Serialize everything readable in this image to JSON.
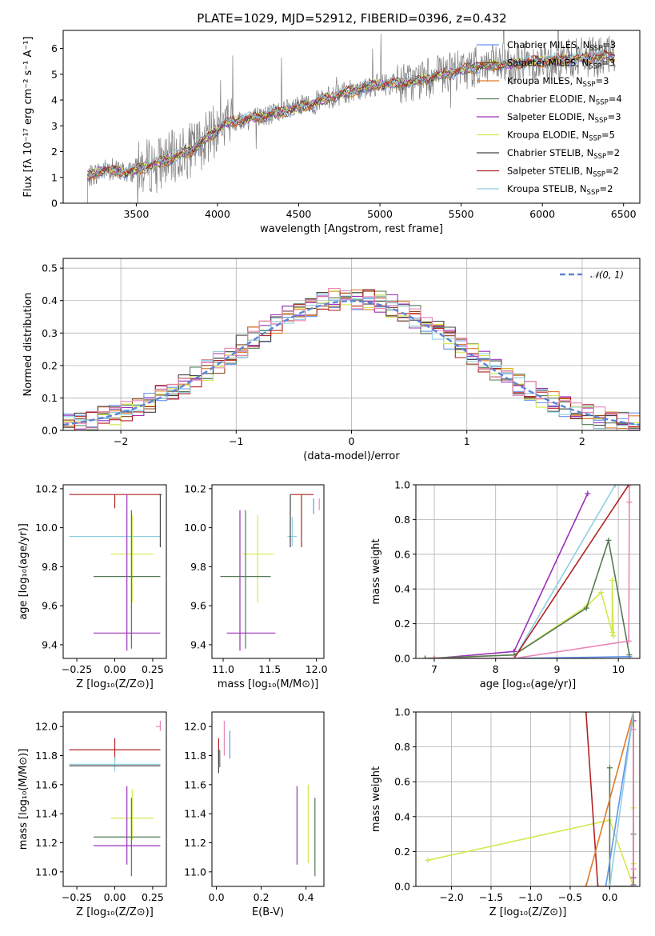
{
  "figure_title": "PLATE=1029, MJD=52912, FIBERID=0396, z=0.432",
  "chart_data": [
    {
      "type": "line",
      "panel": "spectrum",
      "title": "PLATE=1029, MJD=52912, FIBERID=0396, z=0.432",
      "xlabel": "wavelength [Angstrom, rest frame]",
      "ylabel": "Flux [fλ 10⁻¹⁷ erg cm⁻² s⁻¹ A⁻¹]",
      "xlim": [
        3050,
        6600
      ],
      "ylim": [
        0,
        6.7
      ],
      "xticks": [
        3500,
        4000,
        4500,
        5000,
        5500,
        6000,
        6500
      ],
      "yticks": [
        0,
        1,
        2,
        3,
        4,
        5,
        6
      ],
      "grid": false,
      "legend_position": "top-right",
      "continuum_anchors": {
        "x": [
          3200,
          3300,
          3450,
          3600,
          3700,
          3850,
          3950,
          4050,
          4300,
          4500,
          4700,
          4900,
          5000,
          5200,
          5400,
          5600,
          5800,
          6000,
          6200,
          6400
        ],
        "y": [
          1.0,
          1.3,
          1.2,
          1.5,
          1.7,
          2.1,
          2.6,
          3.1,
          3.4,
          3.7,
          4.1,
          4.5,
          4.6,
          4.7,
          5.0,
          5.3,
          5.4,
          5.5,
          5.6,
          5.7
        ]
      },
      "series": [
        {
          "name": "Chabrier MILES, N_SSP=3",
          "color": "#6495ed"
        },
        {
          "name": "Salpeter MILES, N_SSP=3",
          "color": "#8b4513"
        },
        {
          "name": "Kroupa MILES, N_SSP=3",
          "color": "#e07b2a"
        },
        {
          "name": "Chabrier ELODIE, N_SSP=4",
          "color": "#557a55"
        },
        {
          "name": "Salpeter ELODIE, N_SSP=3",
          "color": "#9b30b8"
        },
        {
          "name": "Kroupa ELODIE, N_SSP=5",
          "color": "#d4e84e"
        },
        {
          "name": "Chabrier STELIB, N_SSP=2",
          "color": "#444444"
        },
        {
          "name": "Salpeter STELIB, N_SSP=2",
          "color": "#b22222"
        },
        {
          "name": "Kroupa STELIB, N_SSP=2",
          "color": "#8fcfe0"
        }
      ],
      "legend_entries": [
        {
          "pre": "Chabrier MILES, N",
          "sub": "SSP",
          "post": "=3",
          "color": "#6495ed"
        },
        {
          "pre": "Salpeter MILES, N",
          "sub": "SSP",
          "post": "=3",
          "color": "#8b4513"
        },
        {
          "pre": "Kroupa MILES, N",
          "sub": "SSP",
          "post": "=3",
          "color": "#e07b2a"
        },
        {
          "pre": "Chabrier ELODIE, N",
          "sub": "SSP",
          "post": "=4",
          "color": "#557a55"
        },
        {
          "pre": "Salpeter ELODIE, N",
          "sub": "SSP",
          "post": "=3",
          "color": "#9b30b8"
        },
        {
          "pre": "Kroupa ELODIE, N",
          "sub": "SSP",
          "post": "=5",
          "color": "#d4e84e"
        },
        {
          "pre": "Chabrier STELIB, N",
          "sub": "SSP",
          "post": "=2",
          "color": "#444444"
        },
        {
          "pre": "Salpeter STELIB, N",
          "sub": "SSP",
          "post": "=2",
          "color": "#b22222"
        },
        {
          "pre": "Kroupa STELIB, N",
          "sub": "SSP",
          "post": "=2",
          "color": "#8fcfe0"
        }
      ],
      "data_color": "#808080"
    },
    {
      "type": "line",
      "panel": "residual-histogram",
      "xlabel": "(data-model)/error",
      "ylabel": "Normed distribution",
      "xlim": [
        -2.5,
        2.5
      ],
      "ylim": [
        0,
        0.53
      ],
      "xticks": [
        -2,
        -1,
        0,
        1,
        2
      ],
      "xtick_labels": [
        "−2",
        "−1",
        "0",
        "1",
        "2"
      ],
      "yticks": [
        0.0,
        0.1,
        0.2,
        0.3,
        0.4,
        0.5
      ],
      "ytick_labels": [
        "0.0",
        "0.1",
        "0.2",
        "0.3",
        "0.4",
        "0.5"
      ],
      "grid": true,
      "legend_position": "top-right",
      "legend_label": "𝒩(0, 1)",
      "normal_color": "#5b84d6",
      "bin_edges_start": -2.5,
      "bin_width": 0.1,
      "series_colors": [
        "#6495ed",
        "#8b4513",
        "#e07b2a",
        "#557a55",
        "#9b30b8",
        "#d4e84e",
        "#444444",
        "#b22222",
        "#8fcfe0",
        "#e887b8"
      ]
    },
    {
      "type": "scatter",
      "panel": "age-vs-metallicity",
      "xlabel": "Z [log₁₀(Z/Z⊙)]",
      "ylabel": "age  [log₁₀(age/yr)]",
      "xlim": [
        -0.34,
        0.34
      ],
      "ylim": [
        9.33,
        10.22
      ],
      "xticks": [
        -0.25,
        0.0,
        0.25
      ],
      "xtick_labels": [
        "−0.25",
        "0.00",
        "0.25"
      ],
      "yticks": [
        9.4,
        9.6,
        9.8,
        10.0,
        10.2
      ],
      "ytick_labels": [
        "9.4",
        "9.6",
        "9.8",
        "10.0",
        "10.2"
      ],
      "grid": false,
      "points": [
        {
          "x": 0.0,
          "y": 10.17,
          "xerr": [
            0.3,
            0.3
          ],
          "yerr": [
            0.07,
            0.0
          ],
          "color": "#b22222"
        },
        {
          "x": 0.0,
          "y": 9.955,
          "xerr": [
            0.3,
            0.3
          ],
          "yerr": [
            0.0,
            0.0
          ],
          "color": "#8fcfe0"
        },
        {
          "x": 0.115,
          "y": 9.865,
          "xerr": [
            0.14,
            0.14
          ],
          "yerr": [
            0.25,
            0.2
          ],
          "color": "#d4e84e"
        },
        {
          "x": 0.11,
          "y": 9.75,
          "xerr": [
            0.25,
            0.19
          ],
          "yerr": [
            0.37,
            0.34
          ],
          "color": "#557a55"
        },
        {
          "x": 0.08,
          "y": 9.46,
          "xerr": [
            0.22,
            0.22
          ],
          "yerr": [
            0.09,
            0.71
          ],
          "color": "#9b30b8"
        },
        {
          "x": 0.3,
          "y": 10.17,
          "xerr": [
            0.01,
            0.01
          ],
          "yerr": [
            0.27,
            0.0
          ],
          "color": "#444444"
        }
      ]
    },
    {
      "type": "scatter",
      "panel": "age-vs-mass",
      "xlabel": "mass [log₁₀(M/M⊙)]",
      "xlim": [
        10.88,
        12.08
      ],
      "ylim": [
        9.33,
        10.22
      ],
      "xticks": [
        11.0,
        11.5,
        12.0
      ],
      "xtick_labels": [
        "11.0",
        "11.5",
        "12.0"
      ],
      "yticks": [
        9.4,
        9.6,
        9.8,
        10.0,
        10.2
      ],
      "ytick_labels": [
        "9.4",
        "9.6",
        "9.8",
        "10.0",
        "10.2"
      ],
      "grid": false,
      "points": [
        {
          "x": 11.84,
          "y": 10.17,
          "xerr": [
            0.12,
            0.13
          ],
          "yerr": [
            0.27,
            0.0
          ],
          "color": "#b22222"
        },
        {
          "x": 11.74,
          "y": 9.955,
          "xerr": [
            0.05,
            0.05
          ],
          "yerr": [
            0.05,
            0.1
          ],
          "color": "#8fcfe0"
        },
        {
          "x": 11.37,
          "y": 9.865,
          "xerr": [
            0.17,
            0.17
          ],
          "yerr": [
            0.25,
            0.2
          ],
          "color": "#d4e84e"
        },
        {
          "x": 11.24,
          "y": 9.75,
          "xerr": [
            0.27,
            0.27
          ],
          "yerr": [
            0.37,
            0.34
          ],
          "color": "#557a55"
        },
        {
          "x": 11.18,
          "y": 9.46,
          "xerr": [
            0.14,
            0.38
          ],
          "yerr": [
            0.09,
            0.63
          ],
          "color": "#9b30b8"
        },
        {
          "x": 11.72,
          "y": 10.0,
          "xerr": [
            0.0,
            0.0
          ],
          "yerr": [
            0.1,
            0.17
          ],
          "color": "#444444"
        },
        {
          "x": 11.97,
          "y": 10.15,
          "xerr": [
            0.0,
            0.0
          ],
          "yerr": [
            0.08,
            0.0
          ],
          "color": "#6495ed"
        },
        {
          "x": 12.03,
          "y": 10.15,
          "xerr": [
            0.0,
            0.0
          ],
          "yerr": [
            0.06,
            0.0
          ],
          "color": "#e887b8"
        }
      ]
    },
    {
      "type": "line",
      "panel": "mass-weight-vs-age",
      "xlabel": "age  [log₁₀(age/yr)]",
      "ylabel": "mass weight",
      "xlim": [
        6.7,
        10.35
      ],
      "ylim": [
        0,
        1.0
      ],
      "xticks": [
        7,
        8,
        9,
        10
      ],
      "xtick_labels": [
        "7",
        "8",
        "9",
        "10"
      ],
      "yticks": [
        0.0,
        0.2,
        0.4,
        0.6,
        0.8,
        1.0
      ],
      "ytick_labels": [
        "0.0",
        "0.2",
        "0.4",
        "0.6",
        "0.8",
        "1.0"
      ],
      "grid": true,
      "series": [
        {
          "color": "#6495ed",
          "x": [
            6.85,
            8.3,
            10.18
          ],
          "y": [
            0.0,
            0.0,
            0.01
          ]
        },
        {
          "color": "#9b30b8",
          "x": [
            7.0,
            8.3,
            9.5
          ],
          "y": [
            0.0,
            0.04,
            0.95
          ]
        },
        {
          "color": "#d4e84e",
          "x": [
            6.85,
            8.3,
            9.48,
            9.72,
            9.9,
            9.9,
            9.92
          ],
          "y": [
            0.0,
            0.02,
            0.3,
            0.38,
            0.15,
            0.45,
            0.13
          ]
        },
        {
          "color": "#557a55",
          "x": [
            6.85,
            8.3,
            9.48,
            9.84,
            10.18
          ],
          "y": [
            0.0,
            0.02,
            0.29,
            0.68,
            0.02
          ]
        },
        {
          "color": "#8fcfe0",
          "x": [
            7.0,
            8.3,
            9.95,
            10.18
          ],
          "y": [
            0.0,
            0.0,
            1.0,
            1.0
          ]
        },
        {
          "color": "#b22222",
          "x": [
            7.0,
            8.3,
            10.17
          ],
          "y": [
            0.0,
            0.0,
            1.0
          ]
        },
        {
          "color": "#e887b8",
          "x": [
            7.0,
            8.3,
            10.17,
            10.18,
            10.18
          ],
          "y": [
            0.0,
            0.0,
            0.1,
            0.9,
            1.0
          ]
        }
      ]
    },
    {
      "type": "scatter",
      "panel": "mass-vs-metallicity",
      "xlabel": "Z [log₁₀(Z/Z⊙)]",
      "ylabel": "mass [log₁₀(M/M⊙)]",
      "xlim": [
        -0.34,
        0.34
      ],
      "ylim": [
        10.9,
        12.1
      ],
      "xticks": [
        -0.25,
        0.0,
        0.25
      ],
      "xtick_labels": [
        "−0.25",
        "0.00",
        "0.25"
      ],
      "yticks": [
        11.0,
        11.2,
        11.4,
        11.6,
        11.8,
        12.0
      ],
      "ytick_labels": [
        "11.0",
        "11.2",
        "11.4",
        "11.6",
        "11.8",
        "12.0"
      ],
      "grid": false,
      "points": [
        {
          "x": 0.0,
          "y": 11.84,
          "xerr": [
            0.3,
            0.3
          ],
          "yerr": [
            0.08,
            0.08
          ],
          "color": "#b22222"
        },
        {
          "x": 0.0,
          "y": 11.74,
          "xerr": [
            0.3,
            0.3
          ],
          "yerr": [
            0.05,
            0.05
          ],
          "color": "#8fcfe0"
        },
        {
          "x": 0.0,
          "y": 11.73,
          "xerr": [
            0.3,
            0.3
          ],
          "yerr": [
            0.0,
            0.0
          ],
          "color": "#444444"
        },
        {
          "x": 0.115,
          "y": 11.37,
          "xerr": [
            0.14,
            0.14
          ],
          "yerr": [
            0.15,
            0.2
          ],
          "color": "#d4e84e"
        },
        {
          "x": 0.11,
          "y": 11.24,
          "xerr": [
            0.25,
            0.19
          ],
          "yerr": [
            0.27,
            0.27
          ],
          "color": "#557a55"
        },
        {
          "x": 0.08,
          "y": 11.18,
          "xerr": [
            0.22,
            0.22
          ],
          "yerr": [
            0.13,
            0.41
          ],
          "color": "#9b30b8"
        },
        {
          "x": 0.3,
          "y": 12.0,
          "xerr": [
            0.03,
            0.0
          ],
          "yerr": [
            0.03,
            0.04
          ],
          "color": "#e887b8"
        }
      ]
    },
    {
      "type": "scatter",
      "panel": "mass-vs-extinction",
      "xlabel": "E(B-V)",
      "xlim": [
        -0.02,
        0.48
      ],
      "ylim": [
        10.9,
        12.1
      ],
      "xticks": [
        0.0,
        0.2,
        0.4
      ],
      "xtick_labels": [
        "0.0",
        "0.2",
        "0.4"
      ],
      "yticks": [
        11.0,
        11.2,
        11.4,
        11.6,
        11.8,
        12.0
      ],
      "ytick_labels": [
        "11.0",
        "11.2",
        "11.4",
        "11.6",
        "11.8",
        "12.0"
      ],
      "grid": false,
      "points": [
        {
          "x": 0.01,
          "y": 11.84,
          "yerr": [
            0.08,
            0.08
          ],
          "color": "#b22222"
        },
        {
          "x": 0.01,
          "y": 11.74,
          "yerr": [
            0.06,
            0.1
          ],
          "color": "#444444"
        },
        {
          "x": 0.015,
          "y": 11.78,
          "yerr": [
            0.06,
            0.06
          ],
          "color": "#557a55"
        },
        {
          "x": 0.035,
          "y": 11.9,
          "yerr": [
            0.1,
            0.14
          ],
          "color": "#e887b8"
        },
        {
          "x": 0.06,
          "y": 11.87,
          "yerr": [
            0.09,
            0.1
          ],
          "color": "#6495ed"
        },
        {
          "x": 0.36,
          "y": 11.32,
          "yerr": [
            0.27,
            0.27
          ],
          "color": "#9b30b8"
        },
        {
          "x": 0.41,
          "y": 11.26,
          "yerr": [
            0.2,
            0.34
          ],
          "color": "#d4e84e"
        },
        {
          "x": 0.44,
          "y": 11.24,
          "yerr": [
            0.27,
            0.27
          ],
          "color": "#557a55"
        }
      ]
    },
    {
      "type": "line",
      "panel": "mass-weight-vs-metallicity",
      "xlabel": "Z [log₁₀(Z/Z⊙)]",
      "ylabel": "mass weight",
      "xlim": [
        -2.45,
        0.38
      ],
      "ylim": [
        0,
        1.0
      ],
      "xticks": [
        -2.0,
        -1.5,
        -1.0,
        -0.5,
        0.0
      ],
      "xtick_labels": [
        "−2.0",
        "−1.5",
        "−1.0",
        "−0.5",
        "0.0"
      ],
      "yticks": [
        0.0,
        0.2,
        0.4,
        0.6,
        0.8,
        1.0
      ],
      "ytick_labels": [
        "0.0",
        "0.2",
        "0.4",
        "0.6",
        "0.8",
        "1.0"
      ],
      "grid": true,
      "series": [
        {
          "color": "#d4e84e",
          "x": [
            -2.3,
            0.0,
            0.3,
            0.3,
            0.3
          ],
          "y": [
            0.15,
            0.38,
            0.0,
            0.45,
            0.13
          ]
        },
        {
          "color": "#b22222",
          "x": [
            -0.3,
            -0.15,
            0.3
          ],
          "y": [
            1.0,
            0.0,
            0.0
          ]
        },
        {
          "color": "#557a55",
          "x": [
            0.0,
            0.0,
            0.3,
            0.3
          ],
          "y": [
            0.68,
            0.0,
            0.0,
            0.3
          ]
        },
        {
          "color": "#6495ed",
          "x": [
            -0.05,
            0.3,
            0.3
          ],
          "y": [
            0.0,
            1.0,
            0.01
          ]
        },
        {
          "color": "#9b30b8",
          "x": [
            0.3,
            0.3,
            0.3
          ],
          "y": [
            0.95,
            0.05,
            0.0
          ]
        },
        {
          "color": "#e07b2a",
          "x": [
            -0.3,
            0.3,
            0.3
          ],
          "y": [
            0.0,
            1.0,
            0.0
          ]
        },
        {
          "color": "#8fcfe0",
          "x": [
            0.0,
            0.3
          ],
          "y": [
            0.0,
            1.0
          ]
        },
        {
          "color": "#e887b8",
          "x": [
            0.3,
            0.3
          ],
          "y": [
            0.1,
            0.9
          ]
        }
      ]
    }
  ]
}
